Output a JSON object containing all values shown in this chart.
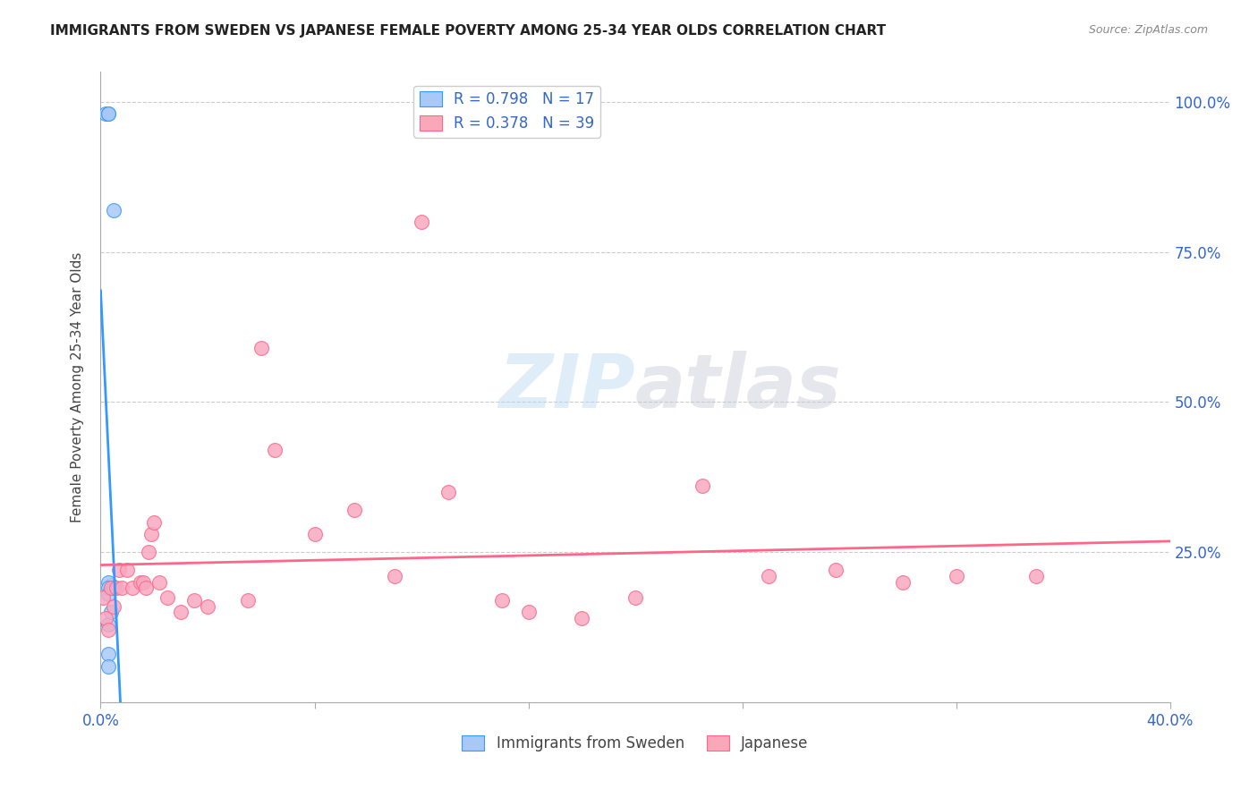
{
  "title": "IMMIGRANTS FROM SWEDEN VS JAPANESE FEMALE POVERTY AMONG 25-34 YEAR OLDS CORRELATION CHART",
  "source": "Source: ZipAtlas.com",
  "ylabel": "Female Poverty Among 25-34 Year Olds",
  "legend_blue_label": "R = 0.798   N = 17",
  "legend_pink_label": "R = 0.378   N = 39",
  "legend_blue_color": "#a8c8f8",
  "legend_pink_color": "#f8a8b8",
  "scatter_blue_color": "#a8c8f8",
  "scatter_pink_color": "#f8a8c0",
  "line_blue_color": "#3399ff",
  "line_pink_color": "#ff6688",
  "text_color": "#3366cc",
  "watermark": "ZIPatlas",
  "blue_x": [
    0.002,
    0.003,
    0.003,
    0.005,
    0.004,
    0.005,
    0.005,
    0.004,
    0.004,
    0.003,
    0.003,
    0.003,
    0.005,
    0.003,
    0.004,
    0.003,
    0.003
  ],
  "blue_y": [
    0.98,
    0.98,
    0.98,
    0.82,
    0.195,
    0.19,
    0.19,
    0.19,
    0.19,
    0.2,
    0.19,
    0.18,
    0.19,
    0.13,
    0.15,
    0.08,
    0.06
  ],
  "pink_x": [
    0.001,
    0.002,
    0.003,
    0.004,
    0.005,
    0.006,
    0.007,
    0.008,
    0.01,
    0.012,
    0.015,
    0.016,
    0.017,
    0.018,
    0.019,
    0.02,
    0.022,
    0.025,
    0.03,
    0.035,
    0.04,
    0.055,
    0.06,
    0.065,
    0.08,
    0.095,
    0.11,
    0.12,
    0.13,
    0.15,
    0.16,
    0.18,
    0.2,
    0.225,
    0.25,
    0.275,
    0.3,
    0.32,
    0.35
  ],
  "pink_y": [
    0.175,
    0.14,
    0.12,
    0.19,
    0.16,
    0.19,
    0.22,
    0.19,
    0.22,
    0.19,
    0.2,
    0.2,
    0.19,
    0.25,
    0.28,
    0.3,
    0.2,
    0.175,
    0.15,
    0.17,
    0.16,
    0.17,
    0.59,
    0.42,
    0.28,
    0.32,
    0.21,
    0.8,
    0.35,
    0.17,
    0.15,
    0.14,
    0.175,
    0.36,
    0.21,
    0.22,
    0.2,
    0.21,
    0.21
  ],
  "xlim": [
    0.0,
    0.4
  ],
  "ylim": [
    0.0,
    1.05
  ],
  "xticks": [
    0.0,
    0.08,
    0.16,
    0.24,
    0.32,
    0.4
  ],
  "yticks": [
    0.0,
    0.25,
    0.5,
    0.75,
    1.0
  ]
}
